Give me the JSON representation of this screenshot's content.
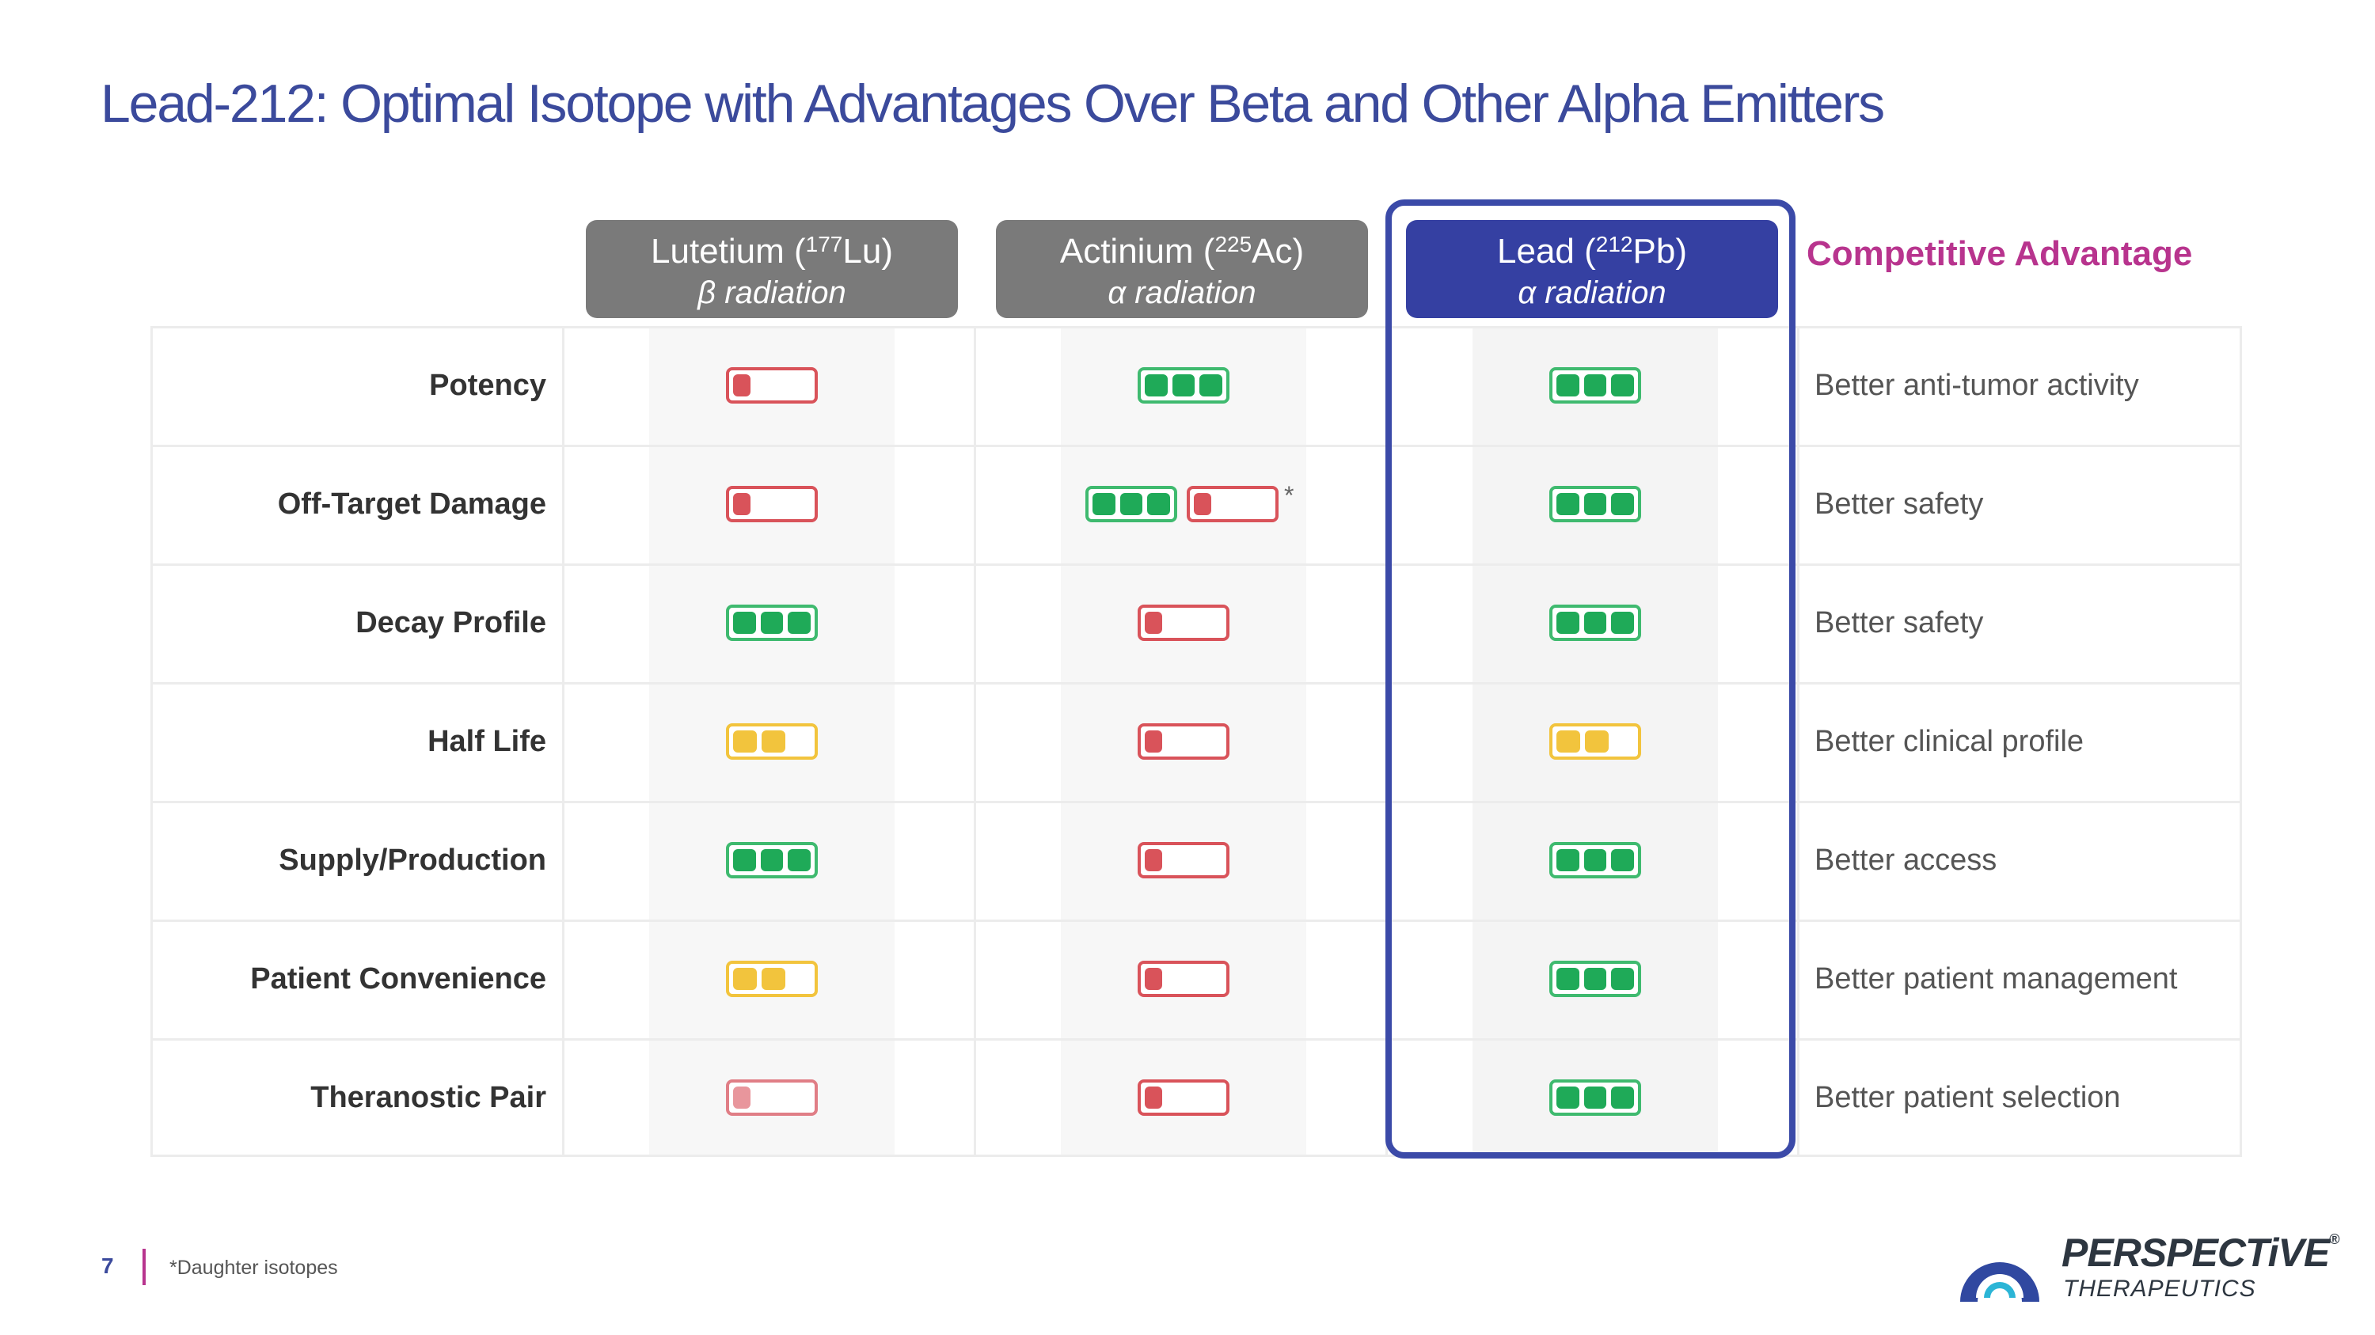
{
  "title": "Lead-212: Optimal Isotope with Advantages Over Beta and Other Alpha Emitters",
  "columns": {
    "lu": {
      "name": "Lutetium (",
      "sup": "177",
      "sym": "Lu)",
      "radiation": "β radiation"
    },
    "ac": {
      "name": "Actinium (",
      "sup": "225",
      "sym": "Ac)",
      "radiation": "α radiation"
    },
    "pb": {
      "name": "Lead (",
      "sup": "212",
      "sym": "Pb)",
      "radiation": "α radiation"
    },
    "advantage_header": "Competitive Advantage"
  },
  "rows": [
    {
      "label": "Potency",
      "lu": "low",
      "ac": "high",
      "pb": "high",
      "advantage": "Better anti-tumor activity"
    },
    {
      "label": "Off-Target Damage",
      "lu": "low",
      "ac": "high+low",
      "pb": "high",
      "advantage": "Better safety"
    },
    {
      "label": "Decay Profile",
      "lu": "high",
      "ac": "low",
      "pb": "high",
      "advantage": "Better safety"
    },
    {
      "label": "Half Life",
      "lu": "medium",
      "ac": "low",
      "pb": "medium",
      "advantage": "Better clinical profile"
    },
    {
      "label": "Supply/Production",
      "lu": "high",
      "ac": "low",
      "pb": "high",
      "advantage": "Better access"
    },
    {
      "label": "Patient Convenience",
      "lu": "medium",
      "ac": "low",
      "pb": "high",
      "advantage": "Better patient management"
    },
    {
      "label": "Theranostic Pair",
      "lu": "low-faded",
      "ac": "low",
      "pb": "high",
      "advantage": "Better patient selection"
    }
  ],
  "asterisk": "*",
  "footer": {
    "page_number": "7",
    "note": "*Daughter isotopes"
  },
  "logo": {
    "brand": "PERSPECTiVE",
    "reg": "®",
    "sub": "THERAPEUTICS"
  },
  "colors": {
    "title": "#3b4a9c",
    "accent": "#b8348e",
    "lead_header": "#3540a2",
    "grey_header": "#7a7a7a"
  }
}
